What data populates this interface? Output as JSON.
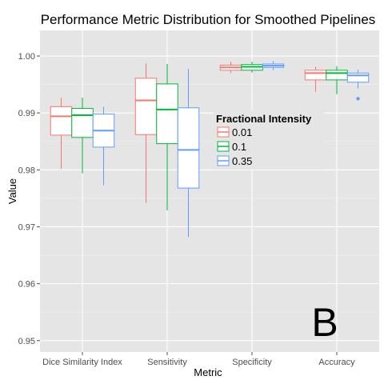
{
  "chart_data": {
    "type": "boxplot",
    "title": "Performance Metric Distribution for Smoothed Pipelines",
    "xlabel": "Metric",
    "ylabel": "Value",
    "ylim": [
      0.948,
      1.0045
    ],
    "yticks": [
      0.95,
      0.96,
      0.97,
      0.98,
      0.99,
      1.0
    ],
    "ytick_labels": [
      "0.95",
      "0.96",
      "0.97",
      "0.98",
      "0.99",
      "1.00"
    ],
    "categories": [
      "Dice Similarity Index",
      "Sensitivity",
      "Specificity",
      "Accuracy"
    ],
    "legend": {
      "title": "Fractional Intensity",
      "position": "inside-center-right"
    },
    "grid": true,
    "annotation": "B",
    "series": [
      {
        "name": "0.01",
        "color": "#F8766D",
        "boxes": [
          {
            "min": 0.9802,
            "q1": 0.9861,
            "median": 0.9894,
            "q3": 0.9911,
            "max": 0.9927,
            "outliers": []
          },
          {
            "min": 0.9742,
            "q1": 0.9862,
            "median": 0.9922,
            "q3": 0.9961,
            "max": 0.9987,
            "outliers": []
          },
          {
            "min": 0.997,
            "q1": 0.9975,
            "median": 0.998,
            "q3": 0.9984,
            "max": 0.999,
            "outliers": []
          },
          {
            "min": 0.9937,
            "q1": 0.9958,
            "median": 0.997,
            "q3": 0.9975,
            "max": 0.9981,
            "outliers": []
          }
        ]
      },
      {
        "name": "0.1",
        "color": "#00BA38",
        "boxes": [
          {
            "min": 0.9794,
            "q1": 0.9857,
            "median": 0.9896,
            "q3": 0.9908,
            "max": 0.9927,
            "outliers": []
          },
          {
            "min": 0.9729,
            "q1": 0.9846,
            "median": 0.9906,
            "q3": 0.9951,
            "max": 0.9986,
            "outliers": []
          },
          {
            "min": 0.9971,
            "q1": 0.9975,
            "median": 0.9981,
            "q3": 0.9985,
            "max": 0.999,
            "outliers": []
          },
          {
            "min": 0.9933,
            "q1": 0.9958,
            "median": 0.997,
            "q3": 0.9975,
            "max": 0.9982,
            "outliers": []
          }
        ]
      },
      {
        "name": "0.35",
        "color": "#619CFF",
        "boxes": [
          {
            "min": 0.9773,
            "q1": 0.984,
            "median": 0.9869,
            "q3": 0.9898,
            "max": 0.9911,
            "outliers": []
          },
          {
            "min": 0.9682,
            "q1": 0.9768,
            "median": 0.9835,
            "q3": 0.9909,
            "max": 0.9977,
            "outliers": []
          },
          {
            "min": 0.9975,
            "q1": 0.998,
            "median": 0.9983,
            "q3": 0.9986,
            "max": 0.9991,
            "outliers": []
          },
          {
            "min": 0.9943,
            "q1": 0.9954,
            "median": 0.9966,
            "q3": 0.997,
            "max": 0.9976,
            "outliers": [
              0.9925
            ]
          }
        ]
      }
    ]
  }
}
